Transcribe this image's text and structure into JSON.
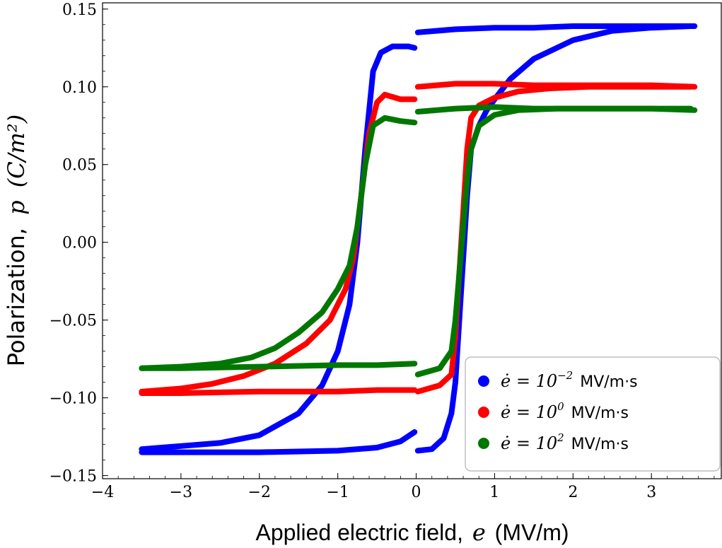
{
  "chart_data": {
    "type": "line",
    "xlabel": "Applied electric field,",
    "xlabel_symbol": "e",
    "xlabel_unit": "(MV/m)",
    "ylabel": "Polarization,",
    "ylabel_symbol": "p",
    "ylabel_unit": "(C/m²)",
    "xlim": [
      -4,
      3.9
    ],
    "ylim": [
      -0.152,
      0.154
    ],
    "xticks": [
      -4,
      -3,
      -2,
      -1,
      0,
      1,
      2,
      3
    ],
    "xtick_labels": [
      "−4",
      "−3",
      "−2",
      "−1",
      "0",
      "1",
      "2",
      "3"
    ],
    "yticks": [
      -0.15,
      -0.1,
      -0.05,
      0.0,
      0.05,
      0.1,
      0.15
    ],
    "ytick_labels": [
      "−0.15",
      "−0.10",
      "−0.05",
      "0.00",
      "0.05",
      "0.10",
      "0.15"
    ],
    "grid": false,
    "legend_position": "bottom-right",
    "series": [
      {
        "name_prefix": "ė = 10",
        "name_exp": "−2",
        "name_unit": "MV/m·s",
        "color": "#0000ff",
        "segments": [
          {
            "x": [
              0.02,
              0.5,
              1.0,
              1.5,
              2.0,
              2.5,
              3.0,
              3.55
            ],
            "y": [
              0.135,
              0.137,
              0.138,
              0.138,
              0.139,
              0.139,
              0.139,
              0.139
            ]
          },
          {
            "x": [
              -0.02,
              -0.1,
              -0.3,
              -0.45,
              -0.55,
              -0.65,
              -0.75,
              -0.85,
              -1.0,
              -1.2,
              -1.5,
              -2.0,
              -2.5,
              -3.0,
              -3.5
            ],
            "y": [
              0.125,
              0.126,
              0.126,
              0.122,
              0.11,
              0.06,
              0.0,
              -0.04,
              -0.07,
              -0.092,
              -0.11,
              -0.124,
              -0.129,
              -0.131,
              -0.133
            ]
          },
          {
            "x": [
              -3.5,
              -3.0,
              -2.0,
              -1.0,
              -0.5,
              -0.2,
              -0.02
            ],
            "y": [
              -0.135,
              -0.135,
              -0.135,
              -0.134,
              -0.132,
              -0.128,
              -0.122
            ]
          },
          {
            "x": [
              0.02,
              0.2,
              0.35,
              0.45,
              0.5,
              0.55,
              0.6,
              0.65,
              0.7,
              0.8,
              0.9,
              1.0,
              1.2,
              1.5,
              2.0,
              2.5,
              3.0,
              3.5
            ],
            "y": [
              -0.134,
              -0.133,
              -0.126,
              -0.11,
              -0.09,
              -0.05,
              -0.01,
              0.03,
              0.06,
              0.075,
              0.085,
              0.092,
              0.105,
              0.118,
              0.13,
              0.136,
              0.138,
              0.139
            ]
          }
        ]
      },
      {
        "name_prefix": "ė = 10",
        "name_exp": "0",
        "name_unit": "MV/m·s",
        "color": "#ff0000",
        "segments": [
          {
            "x": [
              0.02,
              0.5,
              1.0,
              1.5,
              2.0,
              2.5,
              3.0,
              3.55
            ],
            "y": [
              0.1,
              0.102,
              0.102,
              0.101,
              0.101,
              0.101,
              0.101,
              0.1
            ]
          },
          {
            "x": [
              -0.02,
              -0.2,
              -0.4,
              -0.5,
              -0.6,
              -0.7,
              -0.8,
              -0.9,
              -1.1,
              -1.4,
              -1.8,
              -2.2,
              -2.6,
              -3.0,
              -3.5
            ],
            "y": [
              0.092,
              0.092,
              0.095,
              0.09,
              0.07,
              0.03,
              -0.01,
              -0.03,
              -0.05,
              -0.065,
              -0.078,
              -0.086,
              -0.091,
              -0.094,
              -0.096
            ]
          },
          {
            "x": [
              -3.5,
              -3.0,
              -2.0,
              -1.0,
              -0.5,
              -0.02
            ],
            "y": [
              -0.097,
              -0.097,
              -0.096,
              -0.096,
              -0.095,
              -0.095
            ]
          },
          {
            "x": [
              0.02,
              0.3,
              0.45,
              0.5,
              0.55,
              0.6,
              0.65,
              0.7,
              0.8,
              1.0,
              1.3,
              1.7,
              2.2,
              3.0,
              3.5
            ],
            "y": [
              -0.096,
              -0.092,
              -0.085,
              -0.06,
              -0.02,
              0.02,
              0.06,
              0.08,
              0.088,
              0.093,
              0.097,
              0.099,
              0.1,
              0.1,
              0.1
            ]
          }
        ]
      },
      {
        "name_prefix": "ė = 10",
        "name_exp": "2",
        "name_unit": "MV/m·s",
        "color": "#007700",
        "segments": [
          {
            "x": [
              0.02,
              0.5,
              1.0,
              1.5,
              2.0,
              2.5,
              3.0,
              3.55
            ],
            "y": [
              0.084,
              0.086,
              0.087,
              0.086,
              0.086,
              0.086,
              0.086,
              0.085
            ]
          },
          {
            "x": [
              -0.02,
              -0.2,
              -0.4,
              -0.55,
              -0.65,
              -0.75,
              -0.85,
              -1.0,
              -1.2,
              -1.5,
              -1.8,
              -2.1,
              -2.5,
              -3.0,
              -3.5
            ],
            "y": [
              0.077,
              0.078,
              0.08,
              0.075,
              0.05,
              0.01,
              -0.015,
              -0.03,
              -0.045,
              -0.058,
              -0.068,
              -0.074,
              -0.078,
              -0.08,
              -0.081
            ]
          },
          {
            "x": [
              -3.5,
              -3.0,
              -2.0,
              -1.0,
              -0.5,
              -0.02
            ],
            "y": [
              -0.081,
              -0.081,
              -0.08,
              -0.079,
              -0.079,
              -0.078
            ]
          },
          {
            "x": [
              0.02,
              0.3,
              0.45,
              0.5,
              0.55,
              0.6,
              0.65,
              0.7,
              0.8,
              1.0,
              1.3,
              1.8,
              2.5,
              3.5
            ],
            "y": [
              -0.085,
              -0.081,
              -0.07,
              -0.05,
              -0.02,
              0.01,
              0.04,
              0.06,
              0.075,
              0.082,
              0.085,
              0.086,
              0.086,
              0.086
            ]
          }
        ]
      }
    ]
  }
}
